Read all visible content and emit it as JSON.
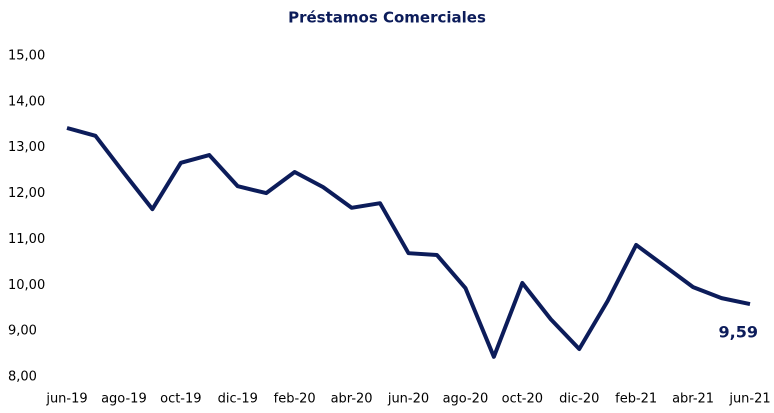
{
  "chart_data": {
    "type": "line",
    "title": "Préstamos Comerciales",
    "categories": [
      "jun-19",
      null,
      "ago-19",
      null,
      "oct-19",
      null,
      "dic-19",
      null,
      "feb-20",
      null,
      "abr-20",
      null,
      "jun-20",
      null,
      "ago-20",
      null,
      "oct-20",
      null,
      "dic-20",
      null,
      "feb-21",
      null,
      "abr-21",
      null,
      "jun-21"
    ],
    "series": [
      {
        "color": "#0c1c5a",
        "values": [
          13.43,
          13.26,
          12.45,
          11.66,
          12.67,
          12.84,
          12.16,
          12.01,
          12.47,
          12.14,
          11.69,
          11.79,
          10.7,
          10.66,
          9.94,
          8.44,
          10.05,
          9.26,
          8.61,
          9.66,
          10.88,
          10.42,
          9.96,
          9.72,
          9.59
        ],
        "value_labels": [
          null,
          null,
          null,
          null,
          null,
          null,
          null,
          null,
          null,
          null,
          null,
          null,
          null,
          null,
          null,
          null,
          null,
          null,
          null,
          null,
          null,
          null,
          null,
          null,
          "9,59"
        ]
      }
    ],
    "ylim": [
      8,
      15
    ],
    "yticks": [
      {
        "value": 8,
        "label": "8,00"
      },
      {
        "value": 9,
        "label": "9,00"
      },
      {
        "value": 10,
        "label": "10,00"
      },
      {
        "value": 11,
        "label": "11,00"
      },
      {
        "value": 12,
        "label": "12,00"
      },
      {
        "value": 13,
        "label": "13,00"
      },
      {
        "value": 14,
        "label": "14,00"
      },
      {
        "value": 15,
        "label": "15,00"
      }
    ],
    "grid": false
  }
}
